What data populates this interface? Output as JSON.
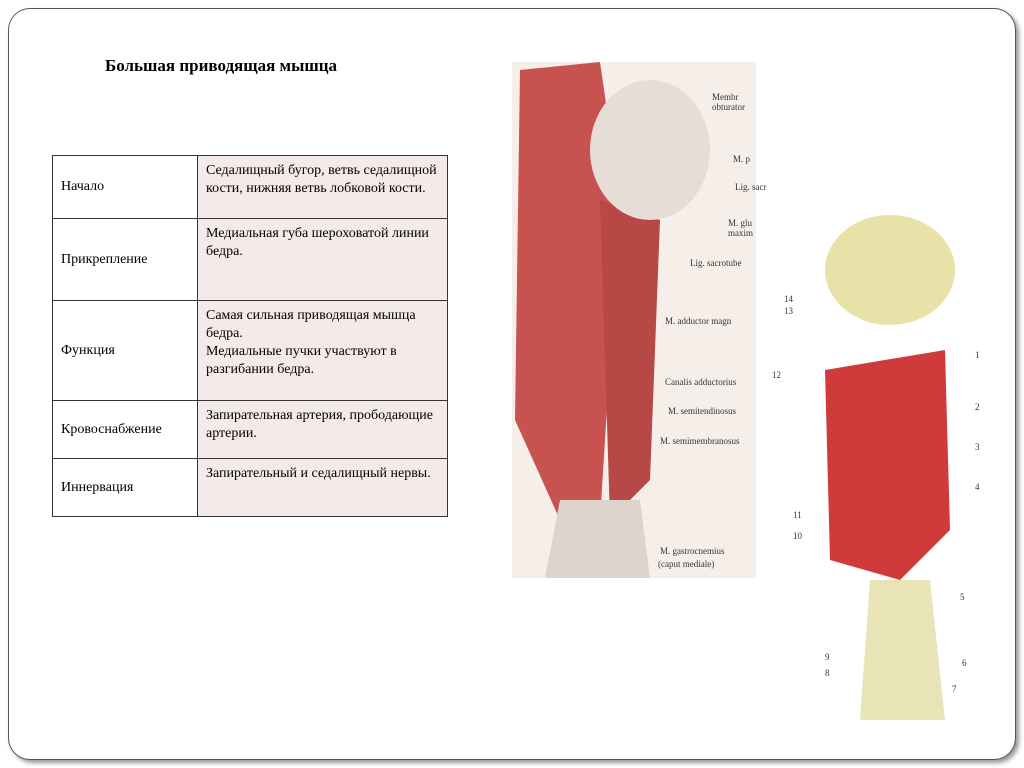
{
  "slide": {
    "title": "Большая приводящая мышца",
    "table": {
      "rows": [
        [
          "Начало",
          "Седалищный бугор, ветвь седалищной кости, нижняя ветвь лобковой кости."
        ],
        [
          "Прикрепление",
          "Медиальная губа шероховатой линии бедра."
        ],
        [
          "Функция",
          "Самая сильная приводящая мышца бедра.\nМедиальные пучки участвуют в разгибании бедра."
        ],
        [
          "Кровоснабжение",
          "Запирательная артерия, прободающие артерии."
        ],
        [
          "Иннервация",
          "Запирательный и седалищный нервы."
        ]
      ]
    },
    "figure_left": {
      "labels": [
        "Membr",
        "obturator",
        "M. p",
        "Lig. sacr",
        "M. glu",
        "maxim",
        "Lig. sacrotube",
        "M. adductor magn",
        "Canalis adductorius",
        "M. semitendinosus",
        "M. semimembranosus",
        "M. gastrocnemius",
        "(caput mediale)"
      ]
    },
    "figure_right": {
      "labels": [
        "14",
        "13",
        "12",
        "1",
        "2",
        "3",
        "4",
        "11",
        "10",
        "5",
        "9",
        "8",
        "6",
        "7"
      ]
    }
  }
}
